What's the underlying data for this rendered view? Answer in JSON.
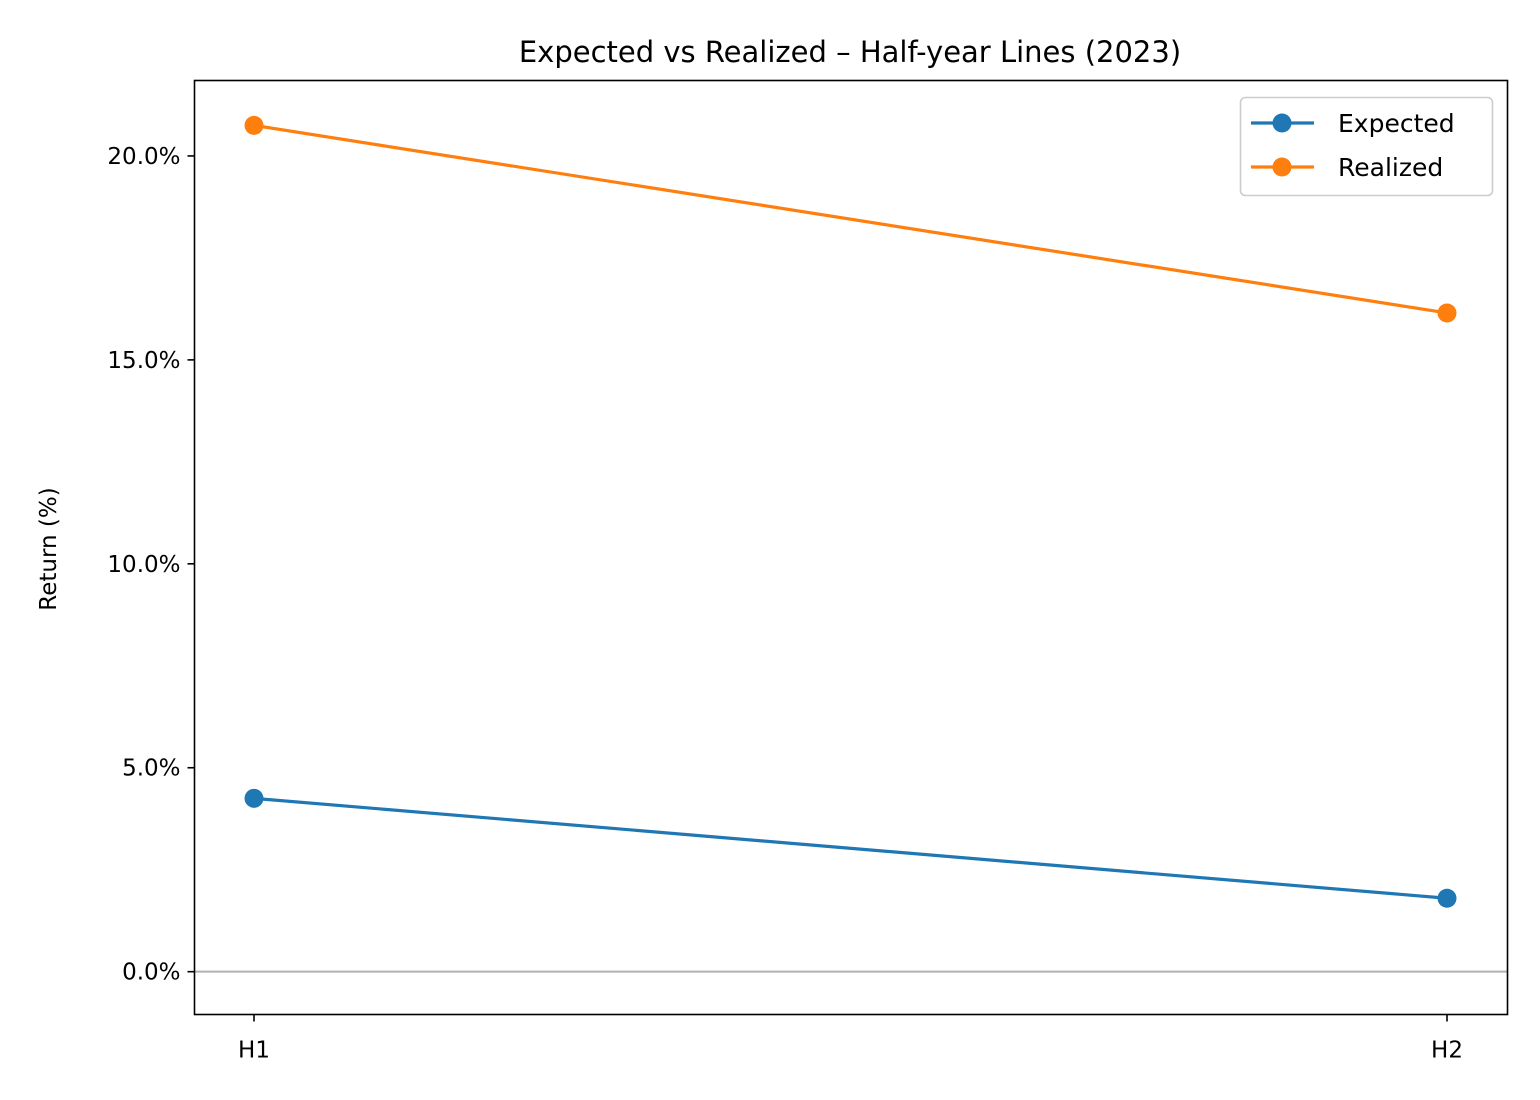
{
  "chart_data": {
    "type": "line",
    "title": "Expected vs Realized – Half-year Lines (2023)",
    "xlabel": "",
    "ylabel": "Return (%)",
    "categories": [
      "H1",
      "H2"
    ],
    "yticks": [
      {
        "value": 0,
        "label": "0.0%"
      },
      {
        "value": 5,
        "label": "5.0%"
      },
      {
        "value": 10,
        "label": "10.0%"
      },
      {
        "value": 15,
        "label": "15.0%"
      },
      {
        "value": 20,
        "label": "20.0%"
      }
    ],
    "ylim": [
      -1.05,
      21.85
    ],
    "reference_line": {
      "value": 0,
      "color": "#b0b0b0"
    },
    "grid": false,
    "legend_position": "top-right",
    "series": [
      {
        "name": "Expected",
        "values": [
          4.25,
          1.8
        ],
        "color": "#1f77b4"
      },
      {
        "name": "Realized",
        "values": [
          20.75,
          16.15
        ],
        "color": "#ff7f0e"
      }
    ]
  }
}
